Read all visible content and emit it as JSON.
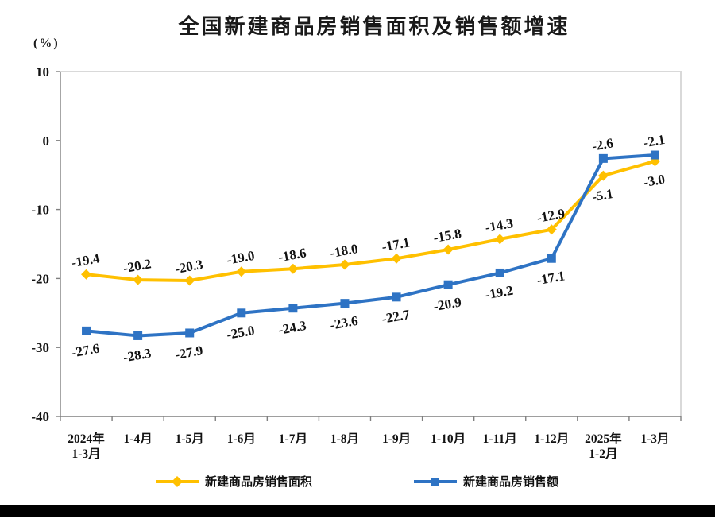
{
  "page": {
    "title": "全国新建商品房销售面积及销售额增速",
    "unit_label": "(%)"
  },
  "chart_data": {
    "type": "line",
    "title": "全国新建商品房销售面积及销售额增速",
    "ylabel": "(%)",
    "ylim": [
      -40,
      10
    ],
    "yticks": [
      10,
      0,
      -10,
      -20,
      -30,
      -40
    ],
    "grid": false,
    "legend_position": "bottom",
    "categories": [
      [
        "2024年",
        "1-3月"
      ],
      [
        "1-4月"
      ],
      [
        "1-5月"
      ],
      [
        "1-6月"
      ],
      [
        "1-7月"
      ],
      [
        "1-8月"
      ],
      [
        "1-9月"
      ],
      [
        "1-10月"
      ],
      [
        "1-11月"
      ],
      [
        "1-12月"
      ],
      [
        "2025年",
        "1-2月"
      ],
      [
        "1-3月"
      ]
    ],
    "series": [
      {
        "name": "新建商品房销售面积",
        "color": "#FFC000",
        "marker": "diamond",
        "values": [
          -19.4,
          -20.2,
          -20.3,
          -19.0,
          -18.6,
          -18.0,
          -17.1,
          -15.8,
          -14.3,
          -12.9,
          -5.1,
          -3.0
        ],
        "label_side": [
          "above",
          "above",
          "above",
          "above",
          "above",
          "above",
          "above",
          "above",
          "above",
          "above",
          "below",
          "below"
        ]
      },
      {
        "name": "新建商品房销售额",
        "color": "#2E73C4",
        "marker": "square",
        "values": [
          -27.6,
          -28.3,
          -27.9,
          -25.0,
          -24.3,
          -23.6,
          -22.7,
          -20.9,
          -19.2,
          -17.1,
          -2.6,
          -2.1
        ],
        "label_side": [
          "below",
          "below",
          "below",
          "below",
          "below",
          "below",
          "below",
          "below",
          "below",
          "below",
          "above",
          "above"
        ]
      }
    ],
    "colors": {
      "axis": "#7f7f7f",
      "box_border": "#d9d9d9",
      "label_text": "#111111",
      "bottom_bar": "#000000"
    }
  }
}
